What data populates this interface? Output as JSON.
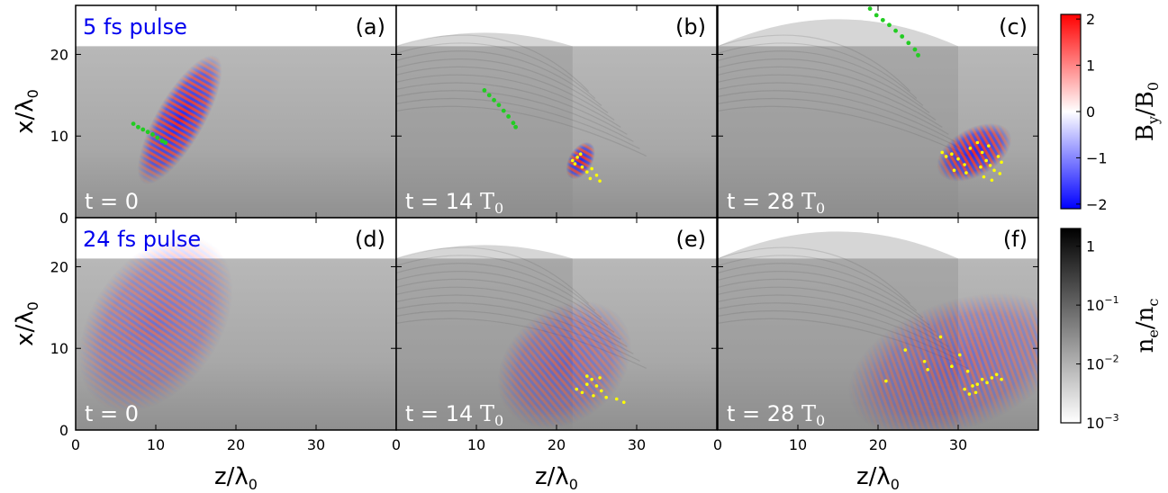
{
  "colors": {
    "by_positive": "#ff0000",
    "by_negative": "#0000ff",
    "density_high": "#000000",
    "density_low": "#ffffff",
    "green_tracer": "#22cc22",
    "yellow_tracer": "#ffff00",
    "pulse_label": "#0000ee"
  },
  "figure": {
    "rows": [
      {
        "pulse_label": "5 fs pulse"
      },
      {
        "pulse_label": "24 fs pulse"
      }
    ],
    "x_tick_labels": [
      "0",
      "10",
      "20",
      "30"
    ],
    "y_tick_labels": [
      "0",
      "10",
      "20"
    ],
    "xlabel": "z/λ",
    "xlabel_sub": "0",
    "ylabel": "x/λ",
    "ylabel_sub": "0"
  },
  "chart_data": [
    {
      "type": "heatmap",
      "panel": "(a)",
      "time_label": "t = 0",
      "time_unit_label": "",
      "row": 0,
      "col": 0,
      "xlim": [
        0,
        40
      ],
      "ylim": [
        0,
        26
      ],
      "plasma_surface_x": 21,
      "pulse": {
        "center_z": 13,
        "center_x": 12,
        "width": 3,
        "length": 9,
        "tilt_deg": -60,
        "wavelength": 0.8
      },
      "green_points": [
        [
          7.2,
          11.5
        ],
        [
          7.8,
          11.1
        ],
        [
          8.4,
          10.8
        ],
        [
          9.0,
          10.5
        ],
        [
          9.6,
          10.2
        ],
        [
          10.2,
          9.8
        ],
        [
          10.8,
          9.4
        ],
        [
          11.2,
          9.2
        ]
      ],
      "yellow_points": []
    },
    {
      "type": "heatmap",
      "panel": "(b)",
      "time_label": "t = 14 ",
      "time_unit_label": "T",
      "row": 0,
      "col": 1,
      "xlim": [
        0,
        40
      ],
      "ylim": [
        0,
        26
      ],
      "plasma_surface_x": 21,
      "pulse": {
        "center_z": 23,
        "center_x": 7,
        "width": 1.5,
        "length": 2.5,
        "tilt_deg": -60,
        "wavelength": 0.8
      },
      "green_points": [
        [
          11,
          15.6
        ],
        [
          11.6,
          15
        ],
        [
          12.2,
          14.4
        ],
        [
          12.8,
          13.8
        ],
        [
          13.4,
          13.1
        ],
        [
          14,
          12.4
        ],
        [
          14.6,
          11.6
        ],
        [
          14.9,
          11.1
        ]
      ],
      "yellow_points": [
        [
          22,
          7
        ],
        [
          22.3,
          6.6
        ],
        [
          22.6,
          7.4
        ],
        [
          23.2,
          6.2
        ],
        [
          23.8,
          5.6
        ],
        [
          24.4,
          6.0
        ],
        [
          25,
          5.2
        ],
        [
          24.2,
          4.8
        ],
        [
          25.4,
          4.5
        ],
        [
          23,
          7.8
        ]
      ]
    },
    {
      "type": "heatmap",
      "panel": "(c)",
      "time_label": "t = 28 ",
      "time_unit_label": "T",
      "row": 0,
      "col": 2,
      "xlim": [
        0,
        40
      ],
      "ylim": [
        0,
        26
      ],
      "plasma_surface_x": 21,
      "pulse": {
        "center_z": 32,
        "center_x": 8,
        "width": 3,
        "length": 5,
        "tilt_deg": -30,
        "wavelength": 0.8
      },
      "green_points": [
        [
          19,
          25.6
        ],
        [
          19.8,
          24.8
        ],
        [
          20.6,
          24.2
        ],
        [
          21.4,
          23.6
        ],
        [
          22.2,
          22.9
        ],
        [
          23,
          22.2
        ],
        [
          23.8,
          21.4
        ],
        [
          24.6,
          20.6
        ],
        [
          25,
          19.9
        ]
      ],
      "yellow_points": [
        [
          28,
          8
        ],
        [
          28.5,
          7.5
        ],
        [
          29.2,
          7.8
        ],
        [
          30,
          7.2
        ],
        [
          30.8,
          6.5
        ],
        [
          31.5,
          8.5
        ],
        [
          32.4,
          9.2
        ],
        [
          33,
          8.0
        ],
        [
          33.5,
          7.0
        ],
        [
          34,
          6.4
        ],
        [
          34.5,
          5.8
        ],
        [
          35,
          7.5
        ],
        [
          33.2,
          5.0
        ],
        [
          34.2,
          4.6
        ],
        [
          35.2,
          5.4
        ],
        [
          33.8,
          8.8
        ],
        [
          32.8,
          6.2
        ],
        [
          31,
          5.5
        ],
        [
          29.5,
          5.8
        ],
        [
          35.4,
          6.8
        ]
      ]
    },
    {
      "type": "heatmap",
      "panel": "(d)",
      "time_label": "t = 0",
      "time_unit_label": "",
      "row": 1,
      "col": 0,
      "xlim": [
        0,
        40
      ],
      "ylim": [
        0,
        26
      ],
      "plasma_surface_x": 21,
      "pulse": {
        "center_z": 10,
        "center_x": 13,
        "width": 8,
        "length": 12,
        "tilt_deg": -55,
        "wavelength": 0.8
      },
      "green_points": [],
      "yellow_points": []
    },
    {
      "type": "heatmap",
      "panel": "(e)",
      "time_label": "t = 14 ",
      "time_unit_label": "T",
      "row": 1,
      "col": 1,
      "xlim": [
        0,
        40
      ],
      "ylim": [
        0,
        26
      ],
      "plasma_surface_x": 21,
      "pulse": {
        "center_z": 21,
        "center_x": 8,
        "width": 7,
        "length": 9,
        "tilt_deg": -40,
        "wavelength": 0.8
      },
      "green_points": [],
      "yellow_points": [
        [
          22.5,
          5.0
        ],
        [
          23.2,
          4.6
        ],
        [
          23.8,
          5.6
        ],
        [
          24.4,
          6.2
        ],
        [
          25,
          5.4
        ],
        [
          25.6,
          4.8
        ],
        [
          24.6,
          4.2
        ],
        [
          26.2,
          4.0
        ],
        [
          27.5,
          3.8
        ],
        [
          28.4,
          3.4
        ],
        [
          23.8,
          6.6
        ],
        [
          25.4,
          6.4
        ]
      ]
    },
    {
      "type": "heatmap",
      "panel": "(f)",
      "time_label": "t = 28 ",
      "time_unit_label": "T",
      "row": 1,
      "col": 2,
      "xlim": [
        0,
        40
      ],
      "ylim": [
        0,
        26
      ],
      "plasma_surface_x": 21,
      "pulse": {
        "center_z": 30,
        "center_x": 8,
        "width": 8,
        "length": 14,
        "tilt_deg": -20,
        "wavelength": 0.8
      },
      "green_points": [],
      "yellow_points": [
        [
          21,
          6
        ],
        [
          23.4,
          9.8
        ],
        [
          25.8,
          8.4
        ],
        [
          27.8,
          11.4
        ],
        [
          26.2,
          7.4
        ],
        [
          29.2,
          7.8
        ],
        [
          30.2,
          9.2
        ],
        [
          31.2,
          7.2
        ],
        [
          31.8,
          5.4
        ],
        [
          30.8,
          5.0
        ],
        [
          32.4,
          5.6
        ],
        [
          33,
          6.2
        ],
        [
          33.6,
          5.8
        ],
        [
          34.2,
          6.4
        ],
        [
          34.8,
          6.8
        ],
        [
          35.4,
          6.2
        ],
        [
          32.2,
          4.6
        ],
        [
          31.4,
          4.4
        ]
      ]
    }
  ],
  "colorbars": [
    {
      "label_main": "B",
      "label_sub1": "y",
      "label_mid": "/B",
      "label_sub2": "0",
      "scale": "linear",
      "range": [
        -2.1,
        2.1
      ],
      "tick_values": [
        -2,
        -1,
        0,
        1,
        2
      ],
      "tick_labels": [
        "−2",
        "−1",
        "0",
        "1",
        "2"
      ],
      "colors": [
        "#0000ff",
        "#ffffff",
        "#ff0000"
      ]
    },
    {
      "label_main": "n",
      "label_sub1": "e",
      "label_mid": "/n",
      "label_sub2": "c",
      "scale": "log",
      "range": [
        0.001,
        2
      ],
      "tick_values": [
        0.001,
        0.01,
        0.1,
        1
      ],
      "tick_labels": [
        "10",
        "10",
        "10",
        "1"
      ],
      "tick_exponents": [
        "−3",
        "−2",
        "−1",
        ""
      ],
      "colors": [
        "#ffffff",
        "#000000"
      ]
    }
  ]
}
